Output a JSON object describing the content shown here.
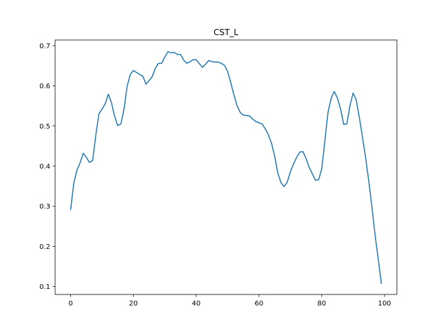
{
  "chart_data": {
    "type": "line",
    "title": "CST_L",
    "xlabel": "",
    "ylabel": "",
    "xlim": [
      -4.95,
      103.95
    ],
    "ylim": [
      0.0805,
      0.714
    ],
    "xticks": [
      0,
      20,
      40,
      60,
      80,
      100
    ],
    "xtick_labels": [
      "0",
      "20",
      "40",
      "60",
      "80",
      "100"
    ],
    "yticks": [
      0.1,
      0.2,
      0.3,
      0.4,
      0.5,
      0.6,
      0.7
    ],
    "ytick_labels": [
      "0.1",
      "0.2",
      "0.3",
      "0.4",
      "0.5",
      "0.6",
      "0.7"
    ],
    "grid": false,
    "series": [
      {
        "name": "",
        "color": "#1f77b4",
        "x": [
          0,
          1,
          2,
          3,
          4,
          5,
          6,
          7,
          8,
          9,
          10,
          11,
          12,
          13,
          14,
          15,
          16,
          17,
          18,
          19,
          20,
          21,
          22,
          23,
          24,
          25,
          26,
          27,
          28,
          29,
          30,
          31,
          32,
          33,
          34,
          35,
          36,
          37,
          38,
          39,
          40,
          41,
          42,
          43,
          44,
          45,
          46,
          47,
          48,
          49,
          50,
          51,
          52,
          53,
          54,
          55,
          56,
          57,
          58,
          59,
          60,
          61,
          62,
          63,
          64,
          65,
          66,
          67,
          68,
          69,
          70,
          71,
          72,
          73,
          74,
          75,
          76,
          77,
          78,
          79,
          80,
          81,
          82,
          83,
          84,
          85,
          86,
          87,
          88,
          89,
          90,
          91,
          92,
          93,
          94,
          95,
          96,
          97,
          98,
          99
        ],
        "values": [
          0.292,
          0.358,
          0.39,
          0.408,
          0.432,
          0.422,
          0.409,
          0.414,
          0.476,
          0.53,
          0.542,
          0.555,
          0.579,
          0.558,
          0.524,
          0.501,
          0.505,
          0.542,
          0.599,
          0.628,
          0.638,
          0.633,
          0.628,
          0.624,
          0.604,
          0.613,
          0.623,
          0.644,
          0.656,
          0.656,
          0.672,
          0.685,
          0.682,
          0.683,
          0.678,
          0.678,
          0.664,
          0.656,
          0.66,
          0.665,
          0.665,
          0.655,
          0.646,
          0.654,
          0.663,
          0.66,
          0.659,
          0.659,
          0.656,
          0.651,
          0.636,
          0.608,
          0.578,
          0.551,
          0.534,
          0.527,
          0.526,
          0.525,
          0.517,
          0.511,
          0.508,
          0.505,
          0.493,
          0.478,
          0.457,
          0.425,
          0.383,
          0.359,
          0.349,
          0.36,
          0.386,
          0.405,
          0.422,
          0.435,
          0.436,
          0.419,
          0.397,
          0.381,
          0.365,
          0.366,
          0.393,
          0.463,
          0.534,
          0.569,
          0.586,
          0.569,
          0.542,
          0.504,
          0.505,
          0.551,
          0.582,
          0.565,
          0.52,
          0.471,
          0.42,
          0.362,
          0.298,
          0.228,
          0.169,
          0.108
        ]
      }
    ]
  }
}
